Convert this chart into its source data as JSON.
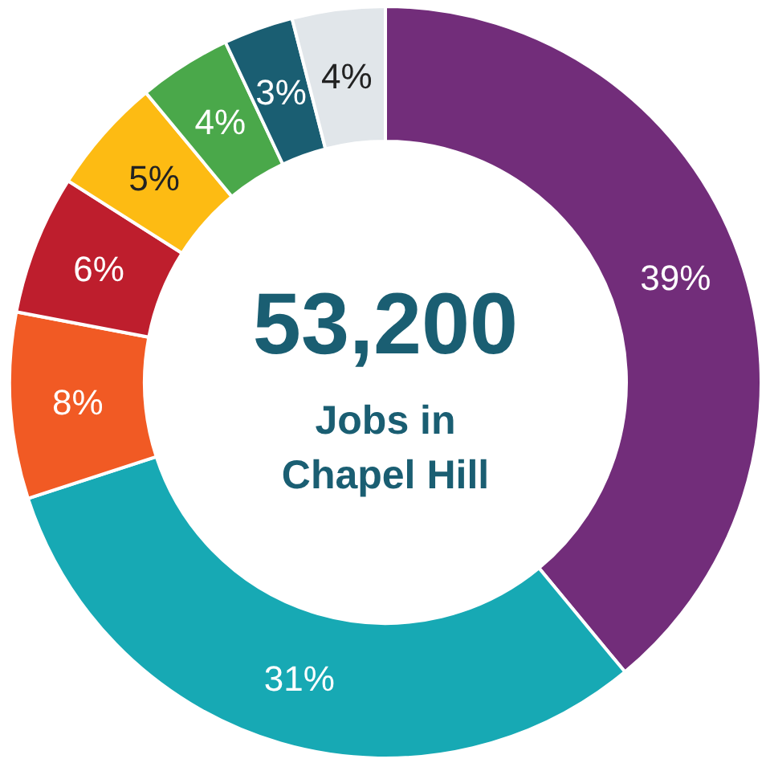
{
  "chart_data": {
    "type": "donut",
    "title": "53,200",
    "subtitle": "Jobs in Chapel Hill",
    "categories": [
      null,
      null,
      null,
      null,
      null,
      null,
      null,
      null
    ],
    "values": [
      39,
      31,
      8,
      6,
      5,
      4,
      3,
      4
    ],
    "value_labels": [
      "39%",
      "31%",
      "8%",
      "6%",
      "5%",
      "4%",
      "3%",
      "4%"
    ],
    "colors": [
      "#722d7a",
      "#17a9b4",
      "#f15a24",
      "#be1e2d",
      "#fdbb13",
      "#4aa84a",
      "#1a5e72",
      "#e1e6ea"
    ]
  }
}
